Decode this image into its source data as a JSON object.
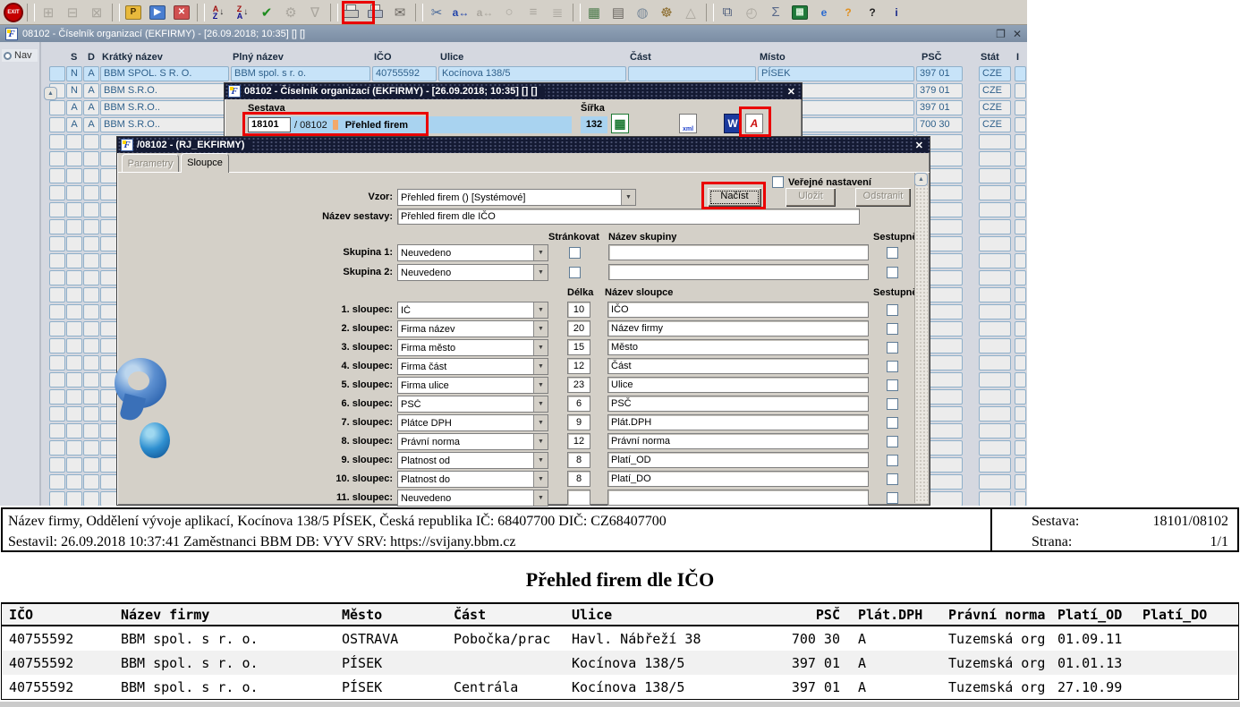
{
  "toolbar": {
    "items": [
      {
        "name": "exit-button",
        "type": "exit",
        "label": "EXIT"
      },
      {
        "type": "sep"
      },
      {
        "name": "record-add-icon",
        "glyph": "⊞",
        "disabled": true
      },
      {
        "name": "record-back-icon",
        "glyph": "⊟",
        "disabled": true
      },
      {
        "name": "record-cancel-icon",
        "glyph": "⊠",
        "disabled": true
      },
      {
        "type": "sep"
      },
      {
        "name": "save-p-icon",
        "type": "box",
        "glyph": "P",
        "bg": "#e8b93c",
        "fg": "#4a3000"
      },
      {
        "name": "save-run-icon",
        "type": "box",
        "glyph": "▶",
        "bg": "#4a7ed0",
        "fg": "#ffffff"
      },
      {
        "name": "save-x-icon",
        "type": "box",
        "glyph": "✕",
        "bg": "#d05050",
        "fg": "#ffffff"
      },
      {
        "type": "sep"
      },
      {
        "name": "sort-az-icon",
        "type": "sort",
        "top": "A",
        "bottom": "Z"
      },
      {
        "name": "sort-za-icon",
        "type": "sort",
        "top": "Z",
        "bottom": "A"
      },
      {
        "name": "confirm-icon",
        "glyph": "✔",
        "color": "#1e8c1e"
      },
      {
        "name": "tools-icon",
        "glyph": "⚙",
        "disabled": true
      },
      {
        "name": "filter-icon",
        "glyph": "∇",
        "disabled": true
      },
      {
        "type": "sep"
      },
      {
        "name": "print-icon",
        "type": "printer",
        "disabled": true
      },
      {
        "name": "print-report-icon",
        "type": "printer"
      },
      {
        "name": "mail-icon",
        "glyph": "✉",
        "color": "#6a6660"
      },
      {
        "type": "sep"
      },
      {
        "name": "cut-icon",
        "glyph": "✂",
        "color": "#4a6a9a"
      },
      {
        "name": "replace-icon",
        "type": "text",
        "glyph": "a↔",
        "color": "#2244aa"
      },
      {
        "name": "replace-alt-icon",
        "type": "text",
        "glyph": "a↔",
        "disabled": true
      },
      {
        "name": "search-doc-icon",
        "glyph": "○",
        "disabled": true
      },
      {
        "name": "outline-icon",
        "glyph": "≡",
        "disabled": true
      },
      {
        "name": "tree-icon",
        "glyph": "≣",
        "disabled": true
      },
      {
        "type": "sep"
      },
      {
        "name": "table-doc-icon",
        "glyph": "▦",
        "color": "#4a7a4a"
      },
      {
        "name": "doc-check-icon",
        "glyph": "▤",
        "color": "#6a6660"
      },
      {
        "name": "globe-icon",
        "glyph": "◍",
        "color": "#7a8a9a"
      },
      {
        "name": "wheel-icon",
        "glyph": "☸",
        "color": "#8a6a2a"
      },
      {
        "name": "prism-icon",
        "glyph": "△",
        "disabled": true
      },
      {
        "type": "sep"
      },
      {
        "name": "preview-icon",
        "glyph": "⧉",
        "color": "#4a5a7a"
      },
      {
        "name": "calc-icon",
        "glyph": "◴",
        "disabled": true
      },
      {
        "name": "sum-icon",
        "glyph": "Σ",
        "color": "#5a6a8a"
      },
      {
        "name": "excel-icon",
        "type": "box",
        "glyph": "▦",
        "bg": "#1f7a3a",
        "fg": "#d8f0d8"
      },
      {
        "name": "browser-icon",
        "type": "text",
        "glyph": "e",
        "color": "#2a6ad0"
      },
      {
        "name": "help-context-icon",
        "type": "text",
        "glyph": "?",
        "color": "#e09020"
      },
      {
        "name": "help-icon",
        "type": "text",
        "glyph": "?",
        "color": "#222222"
      },
      {
        "name": "info-icon",
        "type": "text",
        "glyph": "i",
        "color": "#1a2a8a"
      }
    ]
  },
  "window": {
    "title": "08102 - Číselník organizací (EKFIRMY) - [26.09.2018; 10:35] [] []",
    "nav_label": "Nav",
    "restore_glyph": "❐",
    "close_glyph": "✕",
    "scroll_up_glyph": "▲"
  },
  "main_window": {
    "table": {
      "headers": [
        "S",
        "D",
        "Krátký název",
        "Plný název",
        "IČO",
        "Ulice",
        "Část",
        "Místo",
        "PSČ",
        "Stát",
        "I"
      ],
      "rows": [
        {
          "selected": true,
          "s": "N",
          "d": "A",
          "kratky": "BBM SPOL. S R. O.",
          "plny": "BBM spol. s r. o.",
          "ico": "40755592",
          "ulice": "Kocínova 138/5",
          "cast": "",
          "misto": "PÍSEK",
          "psc": "397 01",
          "stat": "CZE"
        },
        {
          "selected": false,
          "s": "N",
          "d": "A",
          "kratky": "BBM S.R.O.",
          "plny": "",
          "ico": "",
          "ulice": "",
          "cast": "",
          "misto": "",
          "psc": "379 01",
          "stat": "CZE"
        },
        {
          "selected": false,
          "s": "A",
          "d": "A",
          "kratky": "BBM S.R.O..",
          "plny": "",
          "ico": "",
          "ulice": "",
          "cast": "",
          "misto": "",
          "psc": "397 01",
          "stat": "CZE"
        },
        {
          "selected": false,
          "s": "A",
          "d": "A",
          "kratky": "BBM S.R.O..",
          "plny": "",
          "ico": "",
          "ulice": "",
          "cast": "",
          "misto": "",
          "psc": "700 30",
          "stat": "CZE"
        }
      ],
      "empty_row_count": 23
    }
  },
  "dialog1": {
    "title": "08102 - Číselník organizací (EKFIRMY) - [26.09.2018; 10:35] [] []",
    "close_glyph": "✕",
    "sestava_label": "Sestava",
    "id_value": "18101",
    "id_suffix": "/ 08102",
    "name_value": "Přehled firem",
    "sirka_label": "Šířka",
    "sirka_value": "132",
    "excel_glyph": "▦",
    "xml_label": "xml",
    "word_label": "W",
    "pdf_label": "A"
  },
  "dialog2": {
    "title": "/08102 - (RJ_EKFIRMY)",
    "close_glyph": "✕",
    "tabs": [
      {
        "label": "Parametry",
        "disabled": true,
        "active": false
      },
      {
        "label": "Sloupce",
        "disabled": false,
        "active": true
      }
    ],
    "verejne_nastaveni_label": "Veřejné nastavení",
    "vzor_label": "Vzor:",
    "vzor_value": "Přehled firem  ()  [Systémové]",
    "buttons": {
      "nacist": "Načíst",
      "ulozit": "Uložit",
      "odstranit": "Odstranit"
    },
    "nazev_sestavy_label": "Název sestavy:",
    "nazev_sestavy_value": "Přehled firem dle IČO",
    "group_section": {
      "strankovat": "Stránkovat",
      "nazev_skupiny": "Název skupiny",
      "sestupne": "Sestupně"
    },
    "groups": [
      {
        "label": "Skupina 1:",
        "value": "Neuvedeno",
        "nazev": ""
      },
      {
        "label": "Skupina 2:",
        "value": "Neuvedeno",
        "nazev": ""
      }
    ],
    "column_section": {
      "delka": "Délka",
      "nazev_sloupce": "Název sloupce",
      "sestupne": "Sestupně"
    },
    "columns": [
      {
        "label": "1. sloupec:",
        "value": "IČ",
        "delka": "10",
        "nazev": "IČO"
      },
      {
        "label": "2. sloupec:",
        "value": "Firma název",
        "delka": "20",
        "nazev": "Název firmy"
      },
      {
        "label": "3. sloupec:",
        "value": "Firma město",
        "delka": "15",
        "nazev": "Město"
      },
      {
        "label": "4. sloupec:",
        "value": "Firma část",
        "delka": "12",
        "nazev": "Část"
      },
      {
        "label": "5. sloupec:",
        "value": "Firma ulice",
        "delka": "23",
        "nazev": "Ulice"
      },
      {
        "label": "6. sloupec:",
        "value": "PSČ",
        "delka": "6",
        "nazev": "PSČ"
      },
      {
        "label": "7. sloupec:",
        "value": "Plátce DPH",
        "delka": "9",
        "nazev": "Plát.DPH"
      },
      {
        "label": "8. sloupec:",
        "value": "Právní norma",
        "delka": "12",
        "nazev": "Právní norma"
      },
      {
        "label": "9. sloupec:",
        "value": "Platnost od",
        "delka": "8",
        "nazev": "Platí_OD"
      },
      {
        "label": "10. sloupec:",
        "value": "Platnost do",
        "delka": "8",
        "nazev": "Platí_DO"
      },
      {
        "label": "11. sloupec:",
        "value": "Neuvedeno",
        "delka": "",
        "nazev": ""
      }
    ]
  },
  "report": {
    "header": {
      "line1": "Název firmy, Oddělení vývoje aplikací, Kocínova 138/5 PÍSEK, Česká republika  IČ: 68407700  DIČ: CZ68407700",
      "line2": "Sestavil: 26.09.2018 10:37:41 Zaměstnanci BBM  DB: VYV  SRV: https://svijany.bbm.cz",
      "sestava_label": "Sestava:",
      "sestava_value": "18101/08102",
      "strana_label": "Strana:",
      "strana_value": "1/1"
    },
    "title": "Přehled firem dle IČO",
    "table": {
      "headers": [
        "IČO",
        "Název firmy",
        "Město",
        "Část",
        "Ulice",
        "PSČ",
        "Plát.DPH",
        "Právní norma",
        "Platí_OD",
        "Platí_DO"
      ],
      "rows": [
        [
          "40755592",
          "BBM spol. s r. o.",
          "OSTRAVA",
          "Pobočka/prac",
          "Havl. Nábřeží 38",
          "700 30",
          "A",
          "Tuzemská org",
          "01.09.11",
          ""
        ],
        [
          "40755592",
          "BBM spol. s r. o.",
          "PÍSEK",
          "",
          "Kocínova 138/5",
          "397 01",
          "A",
          "Tuzemská org",
          "01.01.13",
          ""
        ],
        [
          "40755592",
          "BBM spol. s r. o.",
          "PÍSEK",
          "Centrála",
          "Kocínova 138/5",
          "397 01",
          "A",
          "Tuzemská org",
          "27.10.99",
          ""
        ]
      ]
    }
  },
  "annotations": {
    "color": "#ea0000",
    "targets": [
      "print-report-icon",
      "sestava-field",
      "pdf-export-icon",
      "nacist-button"
    ]
  },
  "colors": {
    "toolbar_bg": "#d4d0c8",
    "window_titlebar": "#8496ab",
    "dialog_titlebar": "#141a33",
    "selected_row": "#c7e3f8",
    "cell_border": "#8fb0ca",
    "field_blue": "#a9d3f0",
    "annotation": "#ea0000"
  }
}
